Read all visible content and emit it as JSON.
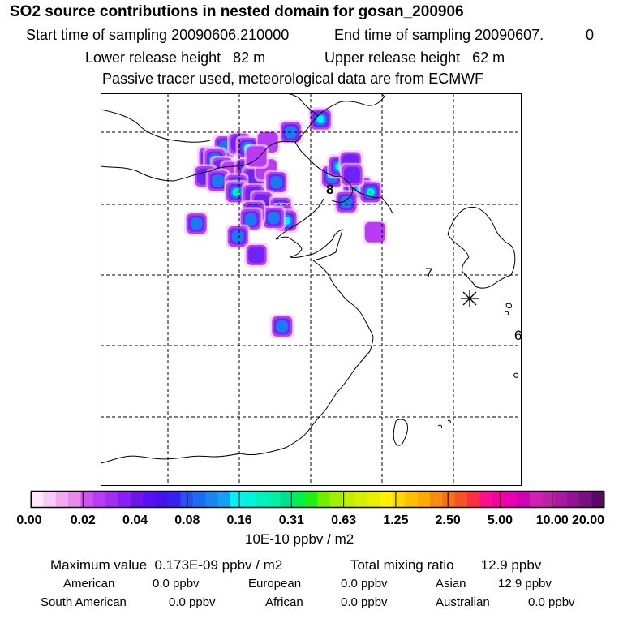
{
  "header": {
    "title": "SO2 source contributions in nested domain for gosan_200906",
    "start_label": "Start time of sampling 20090606.210000",
    "end_label": "End time of sampling 20090607.",
    "end_suffix": "0",
    "lower_height": "Lower release height   82 m",
    "upper_height": "Upper release height   62 m",
    "tracer_note": "Passive tracer used, meteorological data are from ECMWF"
  },
  "map": {
    "labels": [
      "8",
      "7",
      "6"
    ],
    "station_marker": "asterisk",
    "plume_cells": [
      {
        "lon": 119.0,
        "lat": 39.0,
        "level": 3
      },
      {
        "lon": 120.0,
        "lat": 39.2,
        "level": 2
      },
      {
        "lon": 120.6,
        "lat": 38.9,
        "level": 4
      },
      {
        "lon": 122.0,
        "lat": 39.3,
        "level": 1
      },
      {
        "lon": 123.6,
        "lat": 40.0,
        "level": 3
      },
      {
        "lon": 125.7,
        "lat": 40.9,
        "level": 4
      },
      {
        "lon": 117.9,
        "lat": 38.2,
        "level": 2
      },
      {
        "lon": 118.3,
        "lat": 38.1,
        "level": 3
      },
      {
        "lon": 118.8,
        "lat": 37.5,
        "level": 2
      },
      {
        "lon": 119.5,
        "lat": 37.2,
        "level": 1
      },
      {
        "lon": 120.5,
        "lat": 37.4,
        "level": 2
      },
      {
        "lon": 121.0,
        "lat": 36.8,
        "level": 2
      },
      {
        "lon": 121.9,
        "lat": 37.4,
        "level": 1
      },
      {
        "lon": 122.6,
        "lat": 36.5,
        "level": 3
      },
      {
        "lon": 117.6,
        "lat": 36.9,
        "level": 2
      },
      {
        "lon": 118.5,
        "lat": 36.6,
        "level": 3
      },
      {
        "lon": 119.8,
        "lat": 36.3,
        "level": 3
      },
      {
        "lon": 119.8,
        "lat": 35.8,
        "level": 5
      },
      {
        "lon": 121.0,
        "lat": 35.6,
        "level": 2
      },
      {
        "lon": 121.6,
        "lat": 35.1,
        "level": 2
      },
      {
        "lon": 122.9,
        "lat": 34.7,
        "level": 4
      },
      {
        "lon": 123.0,
        "lat": 34.2,
        "level": 5
      },
      {
        "lon": 123.3,
        "lat": 33.8,
        "level": 4
      },
      {
        "lon": 122.4,
        "lat": 34.0,
        "level": 3
      },
      {
        "lon": 121.0,
        "lat": 34.4,
        "level": 2
      },
      {
        "lon": 120.8,
        "lat": 33.9,
        "level": 3
      },
      {
        "lon": 117.0,
        "lat": 33.6,
        "level": 3
      },
      {
        "lon": 119.9,
        "lat": 32.7,
        "level": 3
      },
      {
        "lon": 121.2,
        "lat": 31.4,
        "level": 2
      },
      {
        "lon": 126.5,
        "lat": 36.9,
        "level": 3
      },
      {
        "lon": 127.0,
        "lat": 37.6,
        "level": 4
      },
      {
        "lon": 127.8,
        "lat": 37.9,
        "level": 2
      },
      {
        "lon": 128.0,
        "lat": 36.4,
        "level": 3
      },
      {
        "lon": 128.5,
        "lat": 36.1,
        "level": 4
      },
      {
        "lon": 129.2,
        "lat": 35.8,
        "level": 7
      },
      {
        "lon": 127.5,
        "lat": 35.1,
        "level": 3
      },
      {
        "lon": 127.9,
        "lat": 37.0,
        "level": 2
      },
      {
        "lon": 129.5,
        "lat": 33.0,
        "level": 1
      },
      {
        "lon": 123.0,
        "lat": 26.4,
        "level": 3
      },
      {
        "lon": 121.2,
        "lat": 38.3,
        "level": 1
      }
    ]
  },
  "colorbar": {
    "tick_labels": [
      "0.00",
      "0.02",
      "0.04",
      "0.08",
      "0.16",
      "0.31",
      "0.63",
      "1.25",
      "2.50",
      "5.00",
      "10.00",
      "20.00"
    ],
    "colors": [
      "#fde8fd",
      "#f8cbf8",
      "#f2aaf2",
      "#e98ae9",
      "#cf52f0",
      "#b93cf2",
      "#a12ef2",
      "#8b1ef5",
      "#7113f5",
      "#5a0ef2",
      "#4712f0",
      "#3a20ef",
      "#2950f2",
      "#1e6cf2",
      "#1885f2",
      "#14a0f4",
      "#00f2f2",
      "#00f4dc",
      "#00f2c0",
      "#00f0a4",
      "#00e08c",
      "#00f050",
      "#20f010",
      "#70f000",
      "#a0f000",
      "#c0f000",
      "#d8f000",
      "#e8f000",
      "#fcf000",
      "#fcd800",
      "#fcc000",
      "#fcaa00",
      "#f88c10",
      "#f87018",
      "#f85028",
      "#fc3040",
      "#fc1090",
      "#f800a0",
      "#e800b0",
      "#d000b8",
      "#d020b0",
      "#c020a8",
      "#a818a0",
      "#901490",
      "#781080",
      "#580a60"
    ],
    "unit": "10E-10 ppbv / m2"
  },
  "stats": {
    "max_value": "Maximum value  0.173E-09 ppbv / m2",
    "total_mixing": "Total mixing ratio       12.9 ppbv",
    "regions": [
      {
        "name": "American",
        "value": "0.0 ppbv"
      },
      {
        "name": "European",
        "value": "0.0 ppbv"
      },
      {
        "name": "Asian",
        "value": "12.9 ppbv"
      },
      {
        "name": "South American",
        "value": "0.0 ppbv"
      },
      {
        "name": "African",
        "value": "0.0 ppbv"
      },
      {
        "name": "Australian",
        "value": "0.0 ppbv"
      }
    ]
  }
}
